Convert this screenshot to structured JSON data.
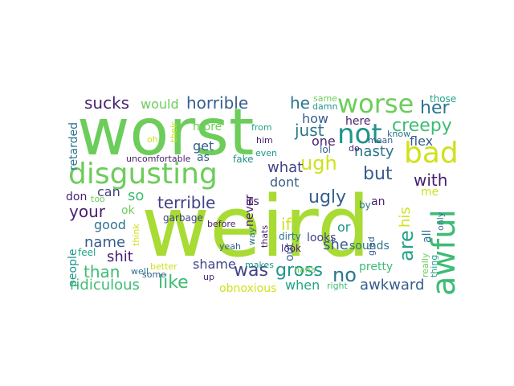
{
  "colors": {
    "lime": "#a8db34",
    "green": "#6ccd5a",
    "mint": "#3dbc74",
    "teal": "#20a386",
    "cyan": "#1f958b",
    "steel": "#2b758e",
    "blue": "#365d8d",
    "indigo": "#404387",
    "purple": "#481f70",
    "yellow": "#d0e11c"
  },
  "words": [
    {
      "text": "weird",
      "color": "lime"
    },
    {
      "text": "worst",
      "color": "green"
    },
    {
      "text": "disgusting",
      "color": "green"
    },
    {
      "text": "awful",
      "color": "mint"
    },
    {
      "text": "worse",
      "color": "green"
    },
    {
      "text": "bad",
      "color": "yellow"
    },
    {
      "text": "not",
      "color": "cyan"
    },
    {
      "text": "creepy",
      "color": "mint"
    },
    {
      "text": "her",
      "color": "steel"
    },
    {
      "text": "ugh",
      "color": "yellow"
    },
    {
      "text": "sucks",
      "color": "purple"
    },
    {
      "text": "would",
      "color": "green"
    },
    {
      "text": "horrible",
      "color": "blue"
    },
    {
      "text": "he",
      "color": "steel"
    },
    {
      "text": "just",
      "color": "steel"
    },
    {
      "text": "one",
      "color": "purple"
    },
    {
      "text": "how",
      "color": "blue"
    },
    {
      "text": "nasty",
      "color": "steel"
    },
    {
      "text": "flex",
      "color": "blue"
    },
    {
      "text": "retarded",
      "color": "steel"
    },
    {
      "text": "but",
      "color": "blue"
    },
    {
      "text": "with",
      "color": "purple"
    },
    {
      "text": "me",
      "color": "yellow"
    },
    {
      "text": "what",
      "color": "indigo"
    },
    {
      "text": "dont",
      "color": "blue"
    },
    {
      "text": "ugly",
      "color": "blue"
    },
    {
      "text": "your",
      "color": "purple"
    },
    {
      "text": "terrible",
      "color": "indigo"
    },
    {
      "text": "can",
      "color": "indigo"
    },
    {
      "text": "so",
      "color": "mint"
    },
    {
      "text": "don",
      "color": "purple"
    },
    {
      "text": "too",
      "color": "green"
    },
    {
      "text": "ok",
      "color": "green"
    },
    {
      "text": "good",
      "color": "steel"
    },
    {
      "text": "name",
      "color": "blue"
    },
    {
      "text": "shit",
      "color": "purple"
    },
    {
      "text": "than",
      "color": "mint"
    },
    {
      "text": "people",
      "color": "cyan"
    },
    {
      "text": "ridiculous",
      "color": "mint"
    },
    {
      "text": "like",
      "color": "mint"
    },
    {
      "text": "shame",
      "color": "indigo"
    },
    {
      "text": "was",
      "color": "indigo"
    },
    {
      "text": "gross",
      "color": "cyan"
    },
    {
      "text": "no",
      "color": "steel"
    },
    {
      "text": "when",
      "color": "teal"
    },
    {
      "text": "awkward",
      "color": "blue"
    },
    {
      "text": "pretty",
      "color": "mint"
    },
    {
      "text": "obnoxious",
      "color": "yellow"
    },
    {
      "text": "she",
      "color": "blue"
    },
    {
      "text": "if",
      "color": "yellow"
    },
    {
      "text": "out",
      "color": "blue"
    },
    {
      "text": "looks",
      "color": "indigo"
    },
    {
      "text": "or",
      "color": "cyan"
    },
    {
      "text": "sounds",
      "color": "steel"
    },
    {
      "text": "are",
      "color": "teal"
    },
    {
      "text": "his",
      "color": "yellow"
    },
    {
      "text": "all",
      "color": "steel"
    },
    {
      "text": "an",
      "color": "purple"
    },
    {
      "text": "by",
      "color": "steel"
    },
    {
      "text": "only",
      "color": "steel"
    },
    {
      "text": "really",
      "color": "green"
    },
    {
      "text": "thing",
      "color": "teal"
    },
    {
      "text": "glad",
      "color": "blue"
    },
    {
      "text": "garbage",
      "color": "indigo"
    },
    {
      "text": "before",
      "color": "purple"
    },
    {
      "text": "uncomfortable",
      "color": "purple"
    },
    {
      "text": "more",
      "color": "green"
    },
    {
      "text": "get",
      "color": "blue"
    },
    {
      "text": "as",
      "color": "blue"
    },
    {
      "text": "fake",
      "color": "cyan"
    },
    {
      "text": "from",
      "color": "teal"
    },
    {
      "text": "him",
      "color": "purple"
    },
    {
      "text": "even",
      "color": "cyan"
    },
    {
      "text": "oh",
      "color": "yellow"
    },
    {
      "text": "their",
      "color": "yellow"
    },
    {
      "text": "same",
      "color": "green"
    },
    {
      "text": "damn",
      "color": "cyan"
    },
    {
      "text": "here",
      "color": "purple"
    },
    {
      "text": "know",
      "color": "steel"
    },
    {
      "text": "those",
      "color": "teal"
    },
    {
      "text": "mean",
      "color": "blue"
    },
    {
      "text": "do",
      "color": "purple"
    },
    {
      "text": "lol",
      "color": "blue"
    },
    {
      "text": "never",
      "color": "purple"
    },
    {
      "text": "its",
      "color": "purple"
    },
    {
      "text": "think",
      "color": "yellow"
    },
    {
      "text": "feel",
      "color": "teal"
    },
    {
      "text": "well",
      "color": "steel"
    },
    {
      "text": "some",
      "color": "blue"
    },
    {
      "text": "better",
      "color": "yellow"
    },
    {
      "text": "up",
      "color": "purple"
    },
    {
      "text": "makes",
      "color": "cyan"
    },
    {
      "text": "yeah",
      "color": "blue"
    },
    {
      "text": "way",
      "color": "steel"
    },
    {
      "text": "thats",
      "color": "purple"
    },
    {
      "text": "haha",
      "color": "green"
    },
    {
      "text": "dirty",
      "color": "steel"
    },
    {
      "text": "look",
      "color": "purple"
    },
    {
      "text": "right",
      "color": "mint"
    }
  ]
}
